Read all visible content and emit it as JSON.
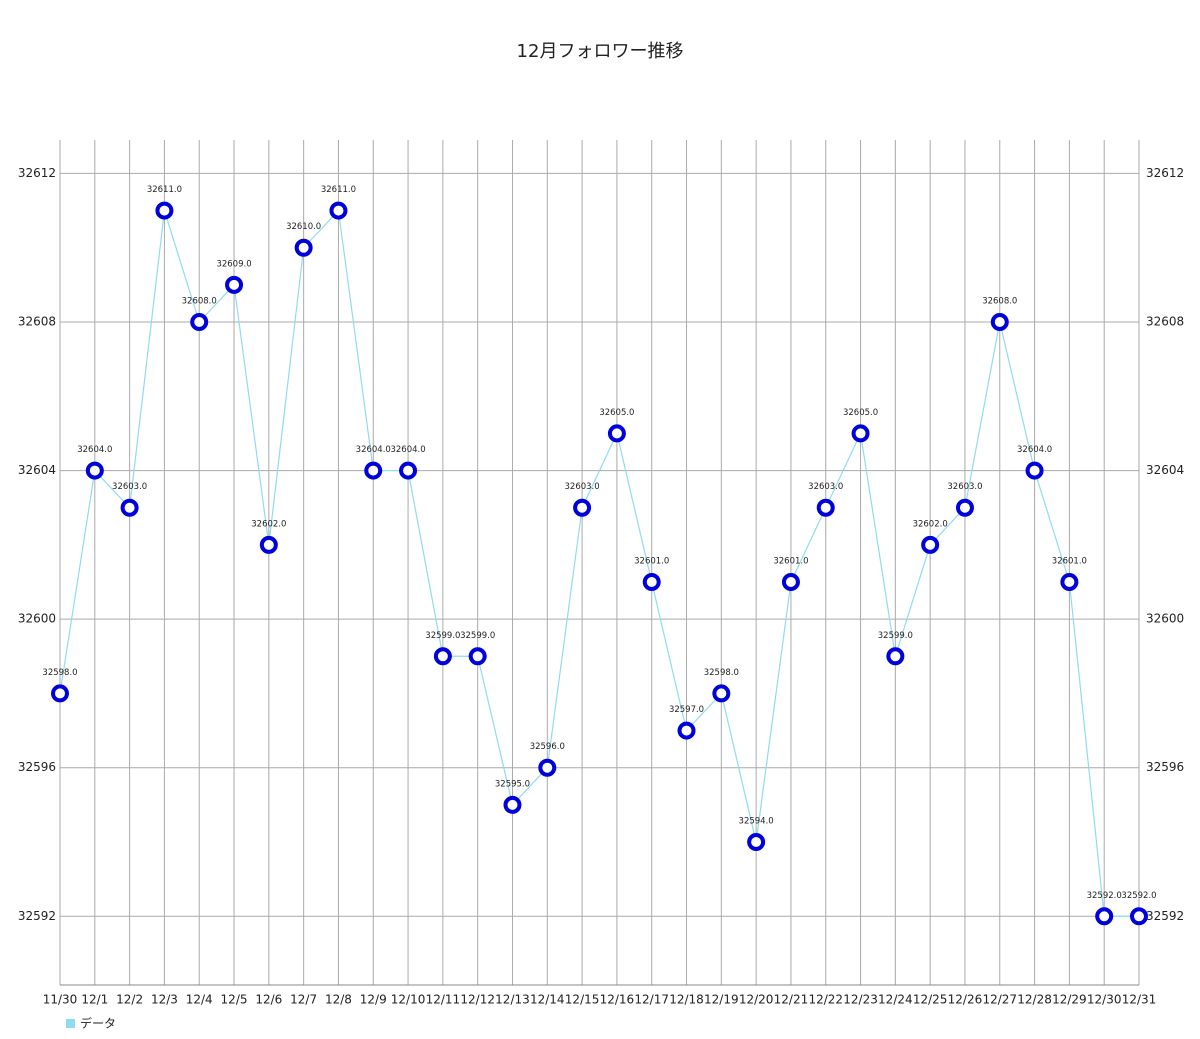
{
  "chart_data": {
    "type": "line",
    "title": "12月フォロワー推移",
    "categories": [
      "11/30",
      "12/1",
      "12/2",
      "12/3",
      "12/4",
      "12/5",
      "12/6",
      "12/7",
      "12/8",
      "12/9",
      "12/10",
      "12/11",
      "12/12",
      "12/13",
      "12/14",
      "12/15",
      "12/16",
      "12/17",
      "12/18",
      "12/19",
      "12/20",
      "12/21",
      "12/22",
      "12/23",
      "12/24",
      "12/25",
      "12/26",
      "12/27",
      "12/28",
      "12/29",
      "12/30",
      "12/31"
    ],
    "series": [
      {
        "name": "データ",
        "color": "#8fdcef",
        "marker_color": "#0000dd",
        "values": [
          32598,
          32604,
          32603,
          32611,
          32608,
          32609,
          32602,
          32610,
          32611,
          32604,
          32604,
          32599,
          32599,
          32595,
          32596,
          32603,
          32605,
          32601,
          32597,
          32598,
          32594,
          32601,
          32603,
          32605,
          32599,
          32602,
          32603,
          32608,
          32604,
          32601,
          32592,
          32592
        ],
        "value_labels": [
          "32598.0",
          "32604.0",
          "32603.0",
          "32611.0",
          "32608.0",
          "32609.0",
          "32602.0",
          "32610.0",
          "32611.0",
          "32604.0",
          "32604.0",
          "32599.0",
          "32599.0",
          "32595.0",
          "32596.0",
          "32603.0",
          "32605.0",
          "32601.0",
          "32597.0",
          "32598.0",
          "32594.0",
          "32601.0",
          "32603.0",
          "32605.0",
          "32599.0",
          "32602.0",
          "32603.0",
          "32608.0",
          "32604.0",
          "32601.0",
          "32592.0",
          "32592.0"
        ]
      }
    ],
    "ylim": [
      32590.15,
      32612.9
    ],
    "yticks": [
      32592,
      32596,
      32600,
      32604,
      32608,
      32612
    ],
    "grid": true
  }
}
